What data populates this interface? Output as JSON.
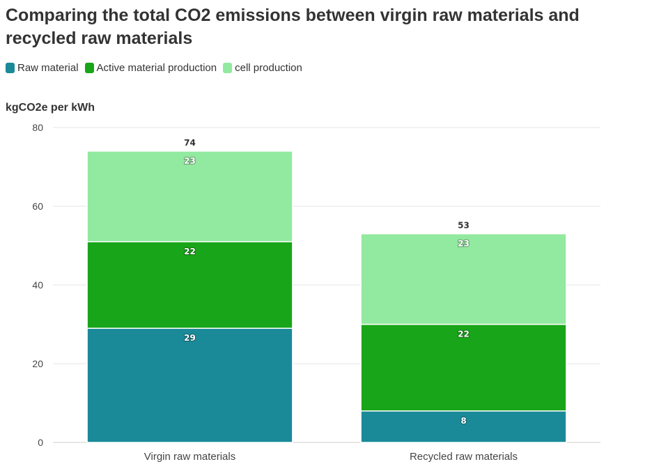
{
  "chart_data": {
    "type": "bar",
    "stacked": true,
    "title": "Comparing the total CO2 emissions between virgin raw materials and recycled raw materials",
    "ylabel": "kgCO2e per kWh",
    "xlabel": "",
    "categories": [
      "Virgin raw materials",
      "Recycled raw materials"
    ],
    "series": [
      {
        "name": "Raw material",
        "color": "#1a8a99",
        "values": [
          29,
          8
        ]
      },
      {
        "name": "Active material production",
        "color": "#19a519",
        "values": [
          22,
          22
        ]
      },
      {
        "name": "cell production",
        "color": "#92e9a0",
        "values": [
          23,
          23
        ]
      }
    ],
    "totals": [
      74,
      53
    ],
    "ylim": [
      0,
      80
    ],
    "yticks": [
      0,
      20,
      40,
      60,
      80
    ],
    "grid": true,
    "legend_position": "top-left"
  }
}
